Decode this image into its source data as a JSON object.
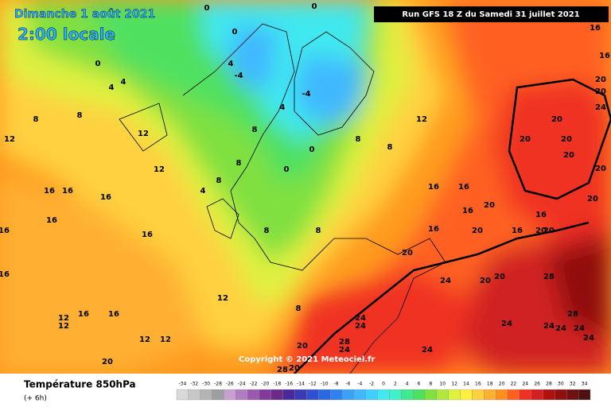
{
  "header": {
    "date": "Dimanche 1 août 2021",
    "time": "2:00 locale",
    "run": "Run GFS 18 Z du Samedi 31 juillet 2021"
  },
  "copyright": "Copyright © 2021 Meteociel.fr",
  "footer": {
    "title": "Température 850hPa",
    "lead": "(+ 6h)"
  },
  "color_scale": {
    "values": [
      -34,
      -32,
      -30,
      -28,
      -26,
      -24,
      -22,
      -20,
      -18,
      -16,
      -14,
      -12,
      -10,
      -8,
      -6,
      -4,
      -2,
      0,
      2,
      4,
      6,
      8,
      10,
      12,
      14,
      16,
      18,
      20,
      22,
      24,
      26,
      28,
      30,
      32,
      34
    ],
    "colors": [
      "#d9d9d9",
      "#c8c8c8",
      "#b4b4b4",
      "#9e9e9e",
      "#c8a0d0",
      "#b07ec0",
      "#9a5aaf",
      "#843a9c",
      "#6a2a8a",
      "#4a2a9a",
      "#3a3ab4",
      "#3050d0",
      "#2a6ae0",
      "#3080f0",
      "#3aa0f8",
      "#40b8ff",
      "#40d0ff",
      "#40e8f0",
      "#40f0c8",
      "#40e890",
      "#50e060",
      "#80e040",
      "#b0e840",
      "#e0f040",
      "#fff040",
      "#ffd040",
      "#ffb030",
      "#ff9020",
      "#ff6020",
      "#f03020",
      "#d02020",
      "#b01010",
      "#901010",
      "#701010",
      "#501010"
    ]
  },
  "contour_labels": [
    0,
    4,
    4,
    8,
    8,
    12,
    12,
    12,
    16,
    16,
    16,
    16,
    16,
    16,
    16,
    12,
    12,
    12,
    16,
    16,
    12,
    12,
    20,
    0,
    0,
    4,
    -4,
    -4,
    0,
    0,
    4,
    0,
    8,
    8,
    4,
    8,
    8,
    8,
    8,
    20,
    20,
    28,
    28,
    24,
    24,
    24,
    24,
    20,
    24,
    20,
    20,
    28,
    28,
    24,
    24,
    24,
    24,
    24,
    20,
    20,
    20,
    20,
    24,
    20,
    20,
    16,
    16,
    20,
    20,
    16,
    20,
    16,
    16,
    20,
    20,
    20,
    16,
    16,
    12,
    16,
    8,
    8
  ]
}
